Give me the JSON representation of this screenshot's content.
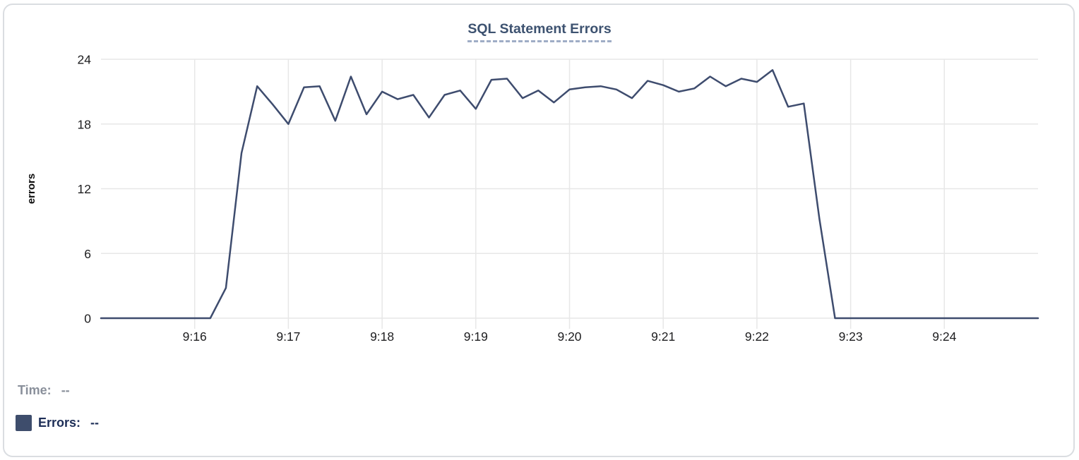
{
  "chart_data": {
    "type": "line",
    "title": "SQL Statement Errors",
    "xlabel": "",
    "ylabel": "errors",
    "ylim": [
      0,
      24
    ],
    "yticks": [
      0,
      6,
      12,
      18,
      24
    ],
    "x_tick_labels": [
      "9:16",
      "9:17",
      "9:18",
      "9:19",
      "9:20",
      "9:21",
      "9:22",
      "9:23",
      "9:24"
    ],
    "x_start_time": "9:15:00",
    "x_end_time": "9:25:00",
    "interval_seconds": 10,
    "total_seconds": 600,
    "grid": true,
    "legend_position": "bottom-left",
    "line_color": "#3e4c6e",
    "grid_color": "#e7e7e7",
    "series": [
      {
        "name": "Errors",
        "values": [
          0,
          0,
          0,
          0,
          0,
          0,
          0,
          0,
          2.8,
          15.3,
          21.5,
          19.8,
          18,
          21.4,
          21.5,
          18.3,
          22.4,
          18.9,
          21,
          20.3,
          20.7,
          18.6,
          20.7,
          21.1,
          19.4,
          22.1,
          22.2,
          20.4,
          21.1,
          20,
          21.2,
          21.4,
          21.5,
          21.2,
          20.4,
          22,
          21.6,
          21,
          21.3,
          22.4,
          21.5,
          22.2,
          21.9,
          23,
          19.6,
          19.9,
          9.2,
          0,
          0,
          0,
          0,
          0,
          0,
          0,
          0,
          0,
          0,
          0,
          0,
          0,
          0
        ]
      }
    ]
  },
  "legend": {
    "time_label": "Time:",
    "time_value": "--",
    "errors_label": "Errors:",
    "errors_value": "--"
  },
  "colors": {
    "title_text": "#3d5270",
    "title_underline": "#9fadc6",
    "line": "#3e4c6e",
    "swatch": "#3e4d6c",
    "time_label": "#8a909b",
    "errors_label": "#1d2e57",
    "card_border": "#dadde1",
    "gridline": "#e7e7e7",
    "tick_text": "#1d1d1f"
  }
}
